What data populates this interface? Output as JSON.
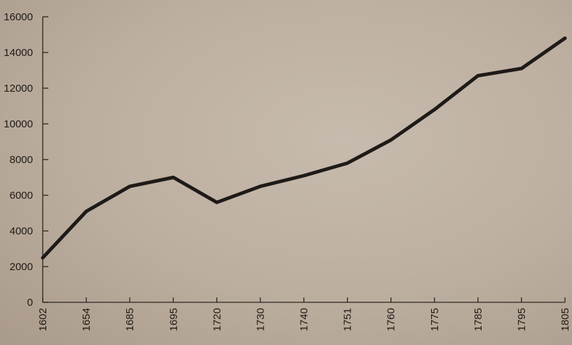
{
  "chart_data": {
    "type": "line",
    "title": "",
    "xlabel": "",
    "ylabel": "",
    "ylim": [
      0,
      16000
    ],
    "yticks": [
      0,
      2000,
      4000,
      6000,
      8000,
      10000,
      12000,
      14000,
      16000
    ],
    "x": [
      "1602",
      "1654",
      "1685",
      "1695",
      "1720",
      "1730",
      "1740",
      "1751",
      "1760",
      "1775",
      "1785",
      "1795",
      "1805"
    ],
    "series": [
      {
        "values": [
          2500,
          5100,
          6500,
          7000,
          5600,
          6500,
          7100,
          7800,
          9100,
          10800,
          12700,
          13100,
          14800
        ]
      }
    ],
    "grid": false,
    "legend": "none",
    "line_color": "#1e1a17"
  }
}
